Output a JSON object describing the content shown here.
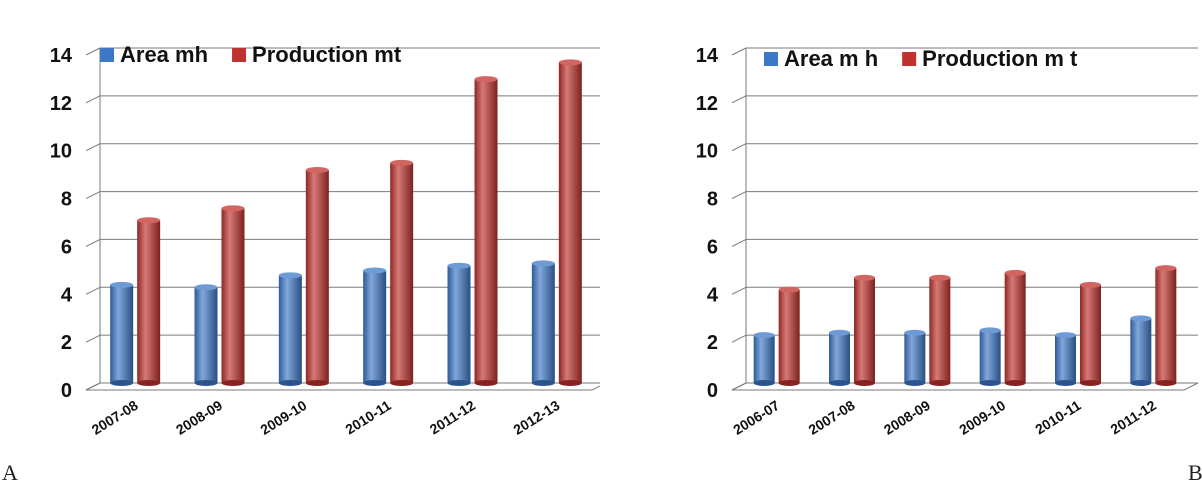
{
  "panels": [
    {
      "letter": "A"
    },
    {
      "letter": "B"
    }
  ],
  "colors": {
    "area": "#3d78c8",
    "production": "#c0322e",
    "grid": "#7a7a7a",
    "text": "#111111"
  },
  "chart_data": [
    {
      "type": "bar",
      "categories": [
        "2007-08",
        "2008-09",
        "2009-10",
        "2010-11",
        "2011-12",
        "2012-13"
      ],
      "series": [
        {
          "name": "Area mh",
          "values": [
            4.1,
            4.0,
            4.5,
            4.7,
            4.9,
            5.0
          ]
        },
        {
          "name": "Production mt",
          "values": [
            6.8,
            7.3,
            8.9,
            9.2,
            12.7,
            13.4
          ]
        }
      ],
      "ylim": [
        0,
        14
      ],
      "yticks": [
        "0",
        "2",
        "4",
        "6",
        "8",
        "10",
        "12",
        "14"
      ],
      "grid": true,
      "legend": "top"
    },
    {
      "type": "bar",
      "categories": [
        "2006-07",
        "2007-08",
        "2008-09",
        "2009-10",
        "2010-11",
        "2011-12"
      ],
      "series": [
        {
          "name": "Area m h",
          "values": [
            2.0,
            2.1,
            2.1,
            2.2,
            2.0,
            2.7
          ]
        },
        {
          "name": "Production m t",
          "values": [
            3.9,
            4.4,
            4.4,
            4.6,
            4.1,
            4.8
          ]
        }
      ],
      "ylim": [
        0,
        14
      ],
      "yticks": [
        "0",
        "2",
        "4",
        "6",
        "8",
        "10",
        "12",
        "14"
      ],
      "grid": true,
      "legend": "top"
    }
  ]
}
